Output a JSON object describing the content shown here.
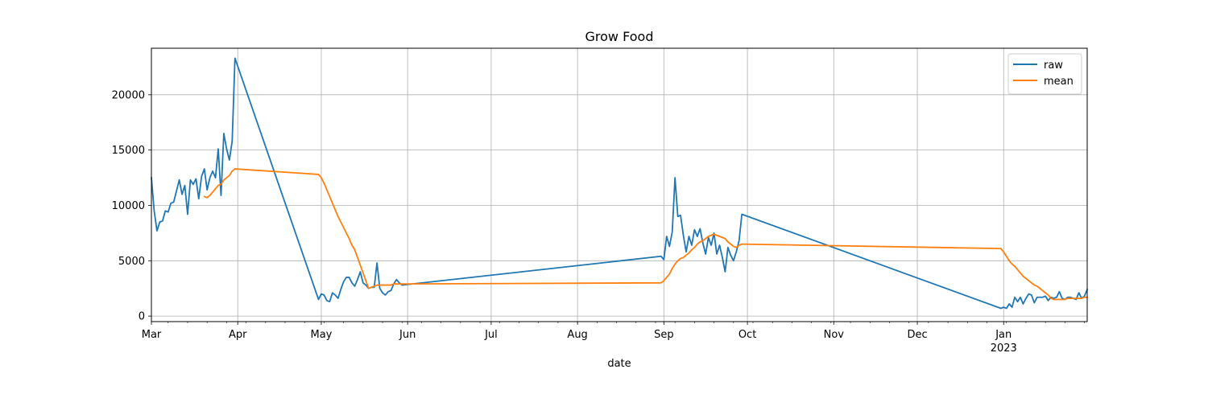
{
  "chart_data": {
    "type": "line",
    "title": "Grow Food",
    "xlabel": "date",
    "ylabel": "",
    "xlim": [
      "2022-03-01",
      "2023-01-31"
    ],
    "ylim": [
      -500,
      24200
    ],
    "grid": true,
    "legend_placement": "top-right",
    "x_ticks": [
      {
        "date": "2022-03-01",
        "label": "Mar"
      },
      {
        "date": "2022-04-01",
        "label": "Apr"
      },
      {
        "date": "2022-05-01",
        "label": "May"
      },
      {
        "date": "2022-06-01",
        "label": "Jun"
      },
      {
        "date": "2022-07-01",
        "label": "Jul"
      },
      {
        "date": "2022-08-01",
        "label": "Aug"
      },
      {
        "date": "2022-09-01",
        "label": "Sep"
      },
      {
        "date": "2022-10-01",
        "label": "Oct"
      },
      {
        "date": "2022-11-01",
        "label": "Nov"
      },
      {
        "date": "2022-12-01",
        "label": "Dec"
      },
      {
        "date": "2023-01-01",
        "label": "Jan",
        "sublabel": "2023"
      }
    ],
    "y_ticks": [
      0,
      5000,
      10000,
      15000,
      20000
    ],
    "series": [
      {
        "name": "raw",
        "color": "#1f77b4",
        "points": [
          [
            "2022-03-01",
            12500
          ],
          [
            "2022-03-02",
            9500
          ],
          [
            "2022-03-03",
            7700
          ],
          [
            "2022-03-04",
            8500
          ],
          [
            "2022-03-05",
            8600
          ],
          [
            "2022-03-06",
            9500
          ],
          [
            "2022-03-07",
            9400
          ],
          [
            "2022-03-08",
            10200
          ],
          [
            "2022-03-09",
            10300
          ],
          [
            "2022-03-10",
            11300
          ],
          [
            "2022-03-11",
            12300
          ],
          [
            "2022-03-12",
            11000
          ],
          [
            "2022-03-13",
            11800
          ],
          [
            "2022-03-14",
            9200
          ],
          [
            "2022-03-15",
            12300
          ],
          [
            "2022-03-16",
            11900
          ],
          [
            "2022-03-17",
            12400
          ],
          [
            "2022-03-18",
            10600
          ],
          [
            "2022-03-19",
            12600
          ],
          [
            "2022-03-20",
            13300
          ],
          [
            "2022-03-21",
            11400
          ],
          [
            "2022-03-22",
            12500
          ],
          [
            "2022-03-23",
            13100
          ],
          [
            "2022-03-24",
            12500
          ],
          [
            "2022-03-25",
            15100
          ],
          [
            "2022-03-26",
            10900
          ],
          [
            "2022-03-27",
            16500
          ],
          [
            "2022-03-28",
            15100
          ],
          [
            "2022-03-29",
            14100
          ],
          [
            "2022-03-30",
            15800
          ],
          [
            "2022-03-31",
            23300
          ],
          [
            "2022-04-30",
            1500
          ],
          [
            "2022-05-01",
            2000
          ],
          [
            "2022-05-02",
            1900
          ],
          [
            "2022-05-03",
            1400
          ],
          [
            "2022-05-04",
            1300
          ],
          [
            "2022-05-05",
            2100
          ],
          [
            "2022-05-06",
            1900
          ],
          [
            "2022-05-07",
            1600
          ],
          [
            "2022-05-08",
            2400
          ],
          [
            "2022-05-09",
            3100
          ],
          [
            "2022-05-10",
            3500
          ],
          [
            "2022-05-11",
            3500
          ],
          [
            "2022-05-12",
            3000
          ],
          [
            "2022-05-13",
            2700
          ],
          [
            "2022-05-14",
            3300
          ],
          [
            "2022-05-15",
            4000
          ],
          [
            "2022-05-16",
            3000
          ],
          [
            "2022-05-17",
            2800
          ],
          [
            "2022-05-18",
            2500
          ],
          [
            "2022-05-19",
            2600
          ],
          [
            "2022-05-20",
            2600
          ],
          [
            "2022-05-21",
            4800
          ],
          [
            "2022-05-22",
            2500
          ],
          [
            "2022-05-23",
            2100
          ],
          [
            "2022-05-24",
            1900
          ],
          [
            "2022-05-25",
            2200
          ],
          [
            "2022-05-26",
            2300
          ],
          [
            "2022-05-27",
            2900
          ],
          [
            "2022-05-28",
            3300
          ],
          [
            "2022-05-29",
            3000
          ],
          [
            "2022-05-30",
            2800
          ],
          [
            "2022-08-31",
            5400
          ],
          [
            "2022-09-01",
            5100
          ],
          [
            "2022-09-02",
            7200
          ],
          [
            "2022-09-03",
            6300
          ],
          [
            "2022-09-04",
            7600
          ],
          [
            "2022-09-05",
            12500
          ],
          [
            "2022-09-06",
            9000
          ],
          [
            "2022-09-07",
            9100
          ],
          [
            "2022-09-08",
            7300
          ],
          [
            "2022-09-09",
            5800
          ],
          [
            "2022-09-10",
            7200
          ],
          [
            "2022-09-11",
            6400
          ],
          [
            "2022-09-12",
            7800
          ],
          [
            "2022-09-13",
            7200
          ],
          [
            "2022-09-14",
            7900
          ],
          [
            "2022-09-15",
            6600
          ],
          [
            "2022-09-16",
            5600
          ],
          [
            "2022-09-17",
            7100
          ],
          [
            "2022-09-18",
            6400
          ],
          [
            "2022-09-19",
            7500
          ],
          [
            "2022-09-20",
            5600
          ],
          [
            "2022-09-21",
            6400
          ],
          [
            "2022-09-22",
            5300
          ],
          [
            "2022-09-23",
            4000
          ],
          [
            "2022-09-24",
            6200
          ],
          [
            "2022-09-25",
            5500
          ],
          [
            "2022-09-26",
            5000
          ],
          [
            "2022-09-27",
            5800
          ],
          [
            "2022-09-28",
            6800
          ],
          [
            "2022-09-29",
            9200
          ],
          [
            "2022-12-31",
            700
          ],
          [
            "2023-01-01",
            800
          ],
          [
            "2023-01-02",
            700
          ],
          [
            "2023-01-03",
            1100
          ],
          [
            "2023-01-04",
            800
          ],
          [
            "2023-01-05",
            1700
          ],
          [
            "2023-01-06",
            1300
          ],
          [
            "2023-01-07",
            1700
          ],
          [
            "2023-01-08",
            1100
          ],
          [
            "2023-01-09",
            1600
          ],
          [
            "2023-01-10",
            2000
          ],
          [
            "2023-01-11",
            1900
          ],
          [
            "2023-01-12",
            1200
          ],
          [
            "2023-01-13",
            1700
          ],
          [
            "2023-01-14",
            1700
          ],
          [
            "2023-01-15",
            1700
          ],
          [
            "2023-01-16",
            1800
          ],
          [
            "2023-01-17",
            1400
          ],
          [
            "2023-01-18",
            1700
          ],
          [
            "2023-01-19",
            1600
          ],
          [
            "2023-01-20",
            1700
          ],
          [
            "2023-01-21",
            2200
          ],
          [
            "2023-01-22",
            1600
          ],
          [
            "2023-01-23",
            1500
          ],
          [
            "2023-01-24",
            1700
          ],
          [
            "2023-01-25",
            1700
          ],
          [
            "2023-01-26",
            1600
          ],
          [
            "2023-01-27",
            1500
          ],
          [
            "2023-01-28",
            2100
          ],
          [
            "2023-01-29",
            1600
          ],
          [
            "2023-01-30",
            1800
          ],
          [
            "2023-01-31",
            2400
          ]
        ]
      },
      {
        "name": "mean",
        "color": "#ff7f0e",
        "points": [
          [
            "2022-03-20",
            10800
          ],
          [
            "2022-03-21",
            10700
          ],
          [
            "2022-03-22",
            10900
          ],
          [
            "2022-03-23",
            11200
          ],
          [
            "2022-03-24",
            11500
          ],
          [
            "2022-03-25",
            11800
          ],
          [
            "2022-03-26",
            11900
          ],
          [
            "2022-03-27",
            12300
          ],
          [
            "2022-03-28",
            12500
          ],
          [
            "2022-03-29",
            12700
          ],
          [
            "2022-03-30",
            13100
          ],
          [
            "2022-03-31",
            13300
          ],
          [
            "2022-04-30",
            12800
          ],
          [
            "2022-05-01",
            12500
          ],
          [
            "2022-05-02",
            12000
          ],
          [
            "2022-05-03",
            11400
          ],
          [
            "2022-05-04",
            10800
          ],
          [
            "2022-05-05",
            10200
          ],
          [
            "2022-05-06",
            9600
          ],
          [
            "2022-05-07",
            9000
          ],
          [
            "2022-05-08",
            8500
          ],
          [
            "2022-05-09",
            8000
          ],
          [
            "2022-05-10",
            7500
          ],
          [
            "2022-05-11",
            7000
          ],
          [
            "2022-05-12",
            6400
          ],
          [
            "2022-05-13",
            6000
          ],
          [
            "2022-05-14",
            5300
          ],
          [
            "2022-05-15",
            4600
          ],
          [
            "2022-05-16",
            3900
          ],
          [
            "2022-05-17",
            3200
          ],
          [
            "2022-05-18",
            2500
          ],
          [
            "2022-05-19",
            2600
          ],
          [
            "2022-05-20",
            2700
          ],
          [
            "2022-05-21",
            2800
          ],
          [
            "2022-05-22",
            2800
          ],
          [
            "2022-05-23",
            2800
          ],
          [
            "2022-05-24",
            2800
          ],
          [
            "2022-05-25",
            2800
          ],
          [
            "2022-05-26",
            2800
          ],
          [
            "2022-05-27",
            2900
          ],
          [
            "2022-05-28",
            2900
          ],
          [
            "2022-05-29",
            2900
          ],
          [
            "2022-05-30",
            2900
          ],
          [
            "2022-08-31",
            3000
          ],
          [
            "2022-09-01",
            3200
          ],
          [
            "2022-09-02",
            3500
          ],
          [
            "2022-09-03",
            3800
          ],
          [
            "2022-09-04",
            4300
          ],
          [
            "2022-09-05",
            4700
          ],
          [
            "2022-09-06",
            5000
          ],
          [
            "2022-09-07",
            5200
          ],
          [
            "2022-09-08",
            5300
          ],
          [
            "2022-09-09",
            5500
          ],
          [
            "2022-09-10",
            5700
          ],
          [
            "2022-09-11",
            6000
          ],
          [
            "2022-09-12",
            6200
          ],
          [
            "2022-09-13",
            6500
          ],
          [
            "2022-09-14",
            6700
          ],
          [
            "2022-09-15",
            6800
          ],
          [
            "2022-09-16",
            7000
          ],
          [
            "2022-09-17",
            7200
          ],
          [
            "2022-09-18",
            7300
          ],
          [
            "2022-09-19",
            7400
          ],
          [
            "2022-09-20",
            7300
          ],
          [
            "2022-09-21",
            7200
          ],
          [
            "2022-09-22",
            7100
          ],
          [
            "2022-09-23",
            7000
          ],
          [
            "2022-09-24",
            6700
          ],
          [
            "2022-09-25",
            6500
          ],
          [
            "2022-09-26",
            6300
          ],
          [
            "2022-09-27",
            6200
          ],
          [
            "2022-09-28",
            6400
          ],
          [
            "2022-09-29",
            6500
          ],
          [
            "2022-12-31",
            6100
          ],
          [
            "2023-01-01",
            5800
          ],
          [
            "2023-01-02",
            5400
          ],
          [
            "2023-01-03",
            5000
          ],
          [
            "2023-01-04",
            4700
          ],
          [
            "2023-01-05",
            4500
          ],
          [
            "2023-01-06",
            4200
          ],
          [
            "2023-01-07",
            3900
          ],
          [
            "2023-01-08",
            3600
          ],
          [
            "2023-01-09",
            3400
          ],
          [
            "2023-01-10",
            3200
          ],
          [
            "2023-01-11",
            3000
          ],
          [
            "2023-01-12",
            2800
          ],
          [
            "2023-01-13",
            2700
          ],
          [
            "2023-01-14",
            2500
          ],
          [
            "2023-01-15",
            2300
          ],
          [
            "2023-01-16",
            2100
          ],
          [
            "2023-01-17",
            1900
          ],
          [
            "2023-01-18",
            1600
          ],
          [
            "2023-01-19",
            1500
          ],
          [
            "2023-01-20",
            1500
          ],
          [
            "2023-01-21",
            1500
          ],
          [
            "2023-01-22",
            1500
          ],
          [
            "2023-01-23",
            1500
          ],
          [
            "2023-01-24",
            1600
          ],
          [
            "2023-01-25",
            1600
          ],
          [
            "2023-01-26",
            1600
          ],
          [
            "2023-01-27",
            1600
          ],
          [
            "2023-01-28",
            1600
          ],
          [
            "2023-01-29",
            1600
          ],
          [
            "2023-01-30",
            1700
          ],
          [
            "2023-01-31",
            1700
          ]
        ]
      }
    ]
  }
}
